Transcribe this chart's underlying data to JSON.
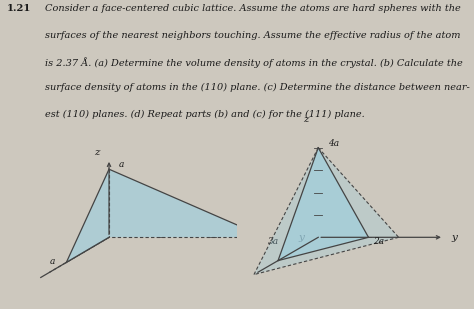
{
  "background_color": "#cdc8be",
  "text_color": "#1a1a1a",
  "title_number": "1.21",
  "title_lines": [
    "Consider a face-centered cubic lattice. Assume the atoms are hard spheres with the",
    "surfaces of the nearest neighbors touching. Assume the effective radius of the atom",
    "is 2.37 Å. (a) Determine the volume density of atoms in the crystal. (b) Calculate the",
    "surface density of atoms in the (110) plane. (c) Determine the distance between near-",
    "est (110) planes. (d) Repeat parts (b) and (c) for the (111) plane."
  ],
  "fill_color": "#9ecfdf",
  "fill_alpha": 0.65,
  "line_color": "#444444",
  "fig_width": 4.74,
  "fig_height": 3.09
}
